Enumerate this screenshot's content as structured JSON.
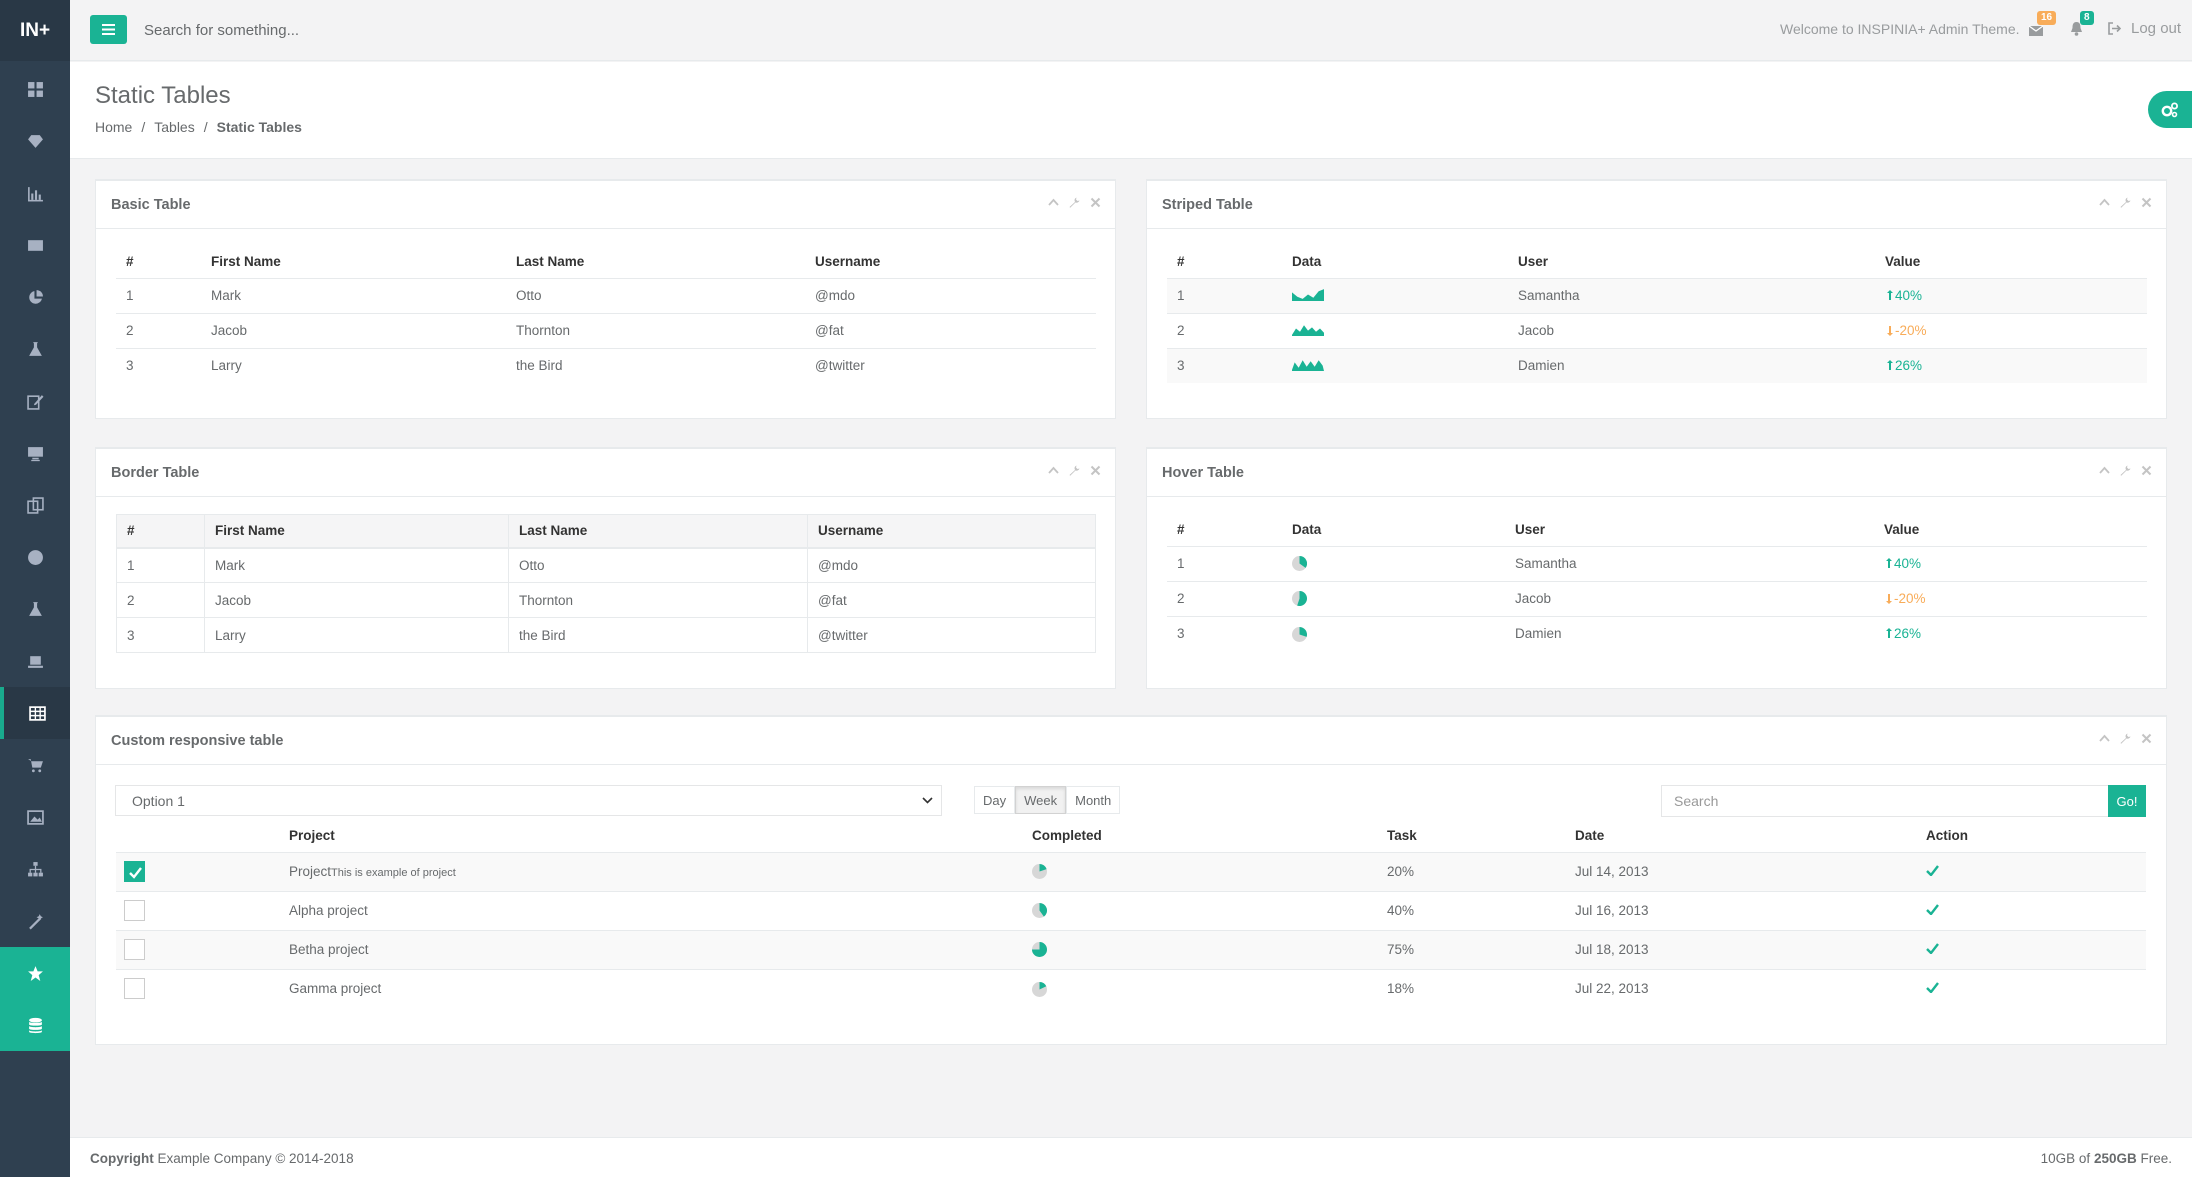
{
  "app": {
    "logo": "IN+"
  },
  "topbar": {
    "search_placeholder": "Search for something...",
    "welcome": "Welcome to INSPINIA+ Admin Theme.",
    "messages_count": "16",
    "alerts_count": "8",
    "logout": "Log out"
  },
  "header": {
    "title": "Static Tables",
    "breadcrumb": [
      "Home",
      "Tables",
      "Static Tables"
    ]
  },
  "sidebar_icons": [
    "dashboard-icon",
    "diamond-icon",
    "bar-chart-icon",
    "envelope-icon",
    "pie-chart-icon",
    "flask-icon",
    "edit-icon",
    "desktop-icon",
    "files-icon",
    "globe-icon",
    "flask-icon",
    "laptop-icon",
    "table-icon",
    "cart-icon",
    "picture-icon",
    "sitemap-icon",
    "magic-icon",
    "star-icon",
    "database-icon"
  ],
  "basic": {
    "title": "Basic Table",
    "headers": [
      "#",
      "First Name",
      "Last Name",
      "Username"
    ],
    "rows": [
      [
        "1",
        "Mark",
        "Otto",
        "@mdo"
      ],
      [
        "2",
        "Jacob",
        "Thornton",
        "@fat"
      ],
      [
        "3",
        "Larry",
        "the Bird",
        "@twitter"
      ]
    ]
  },
  "striped": {
    "title": "Striped Table",
    "headers": [
      "#",
      "Data",
      "User",
      "Value"
    ],
    "rows": [
      {
        "n": "1",
        "user": "Samantha",
        "value": "40%",
        "trend": "up"
      },
      {
        "n": "2",
        "user": "Jacob",
        "value": "-20%",
        "trend": "down"
      },
      {
        "n": "3",
        "user": "Damien",
        "value": "26%",
        "trend": "up"
      }
    ]
  },
  "border": {
    "title": "Border Table",
    "headers": [
      "#",
      "First Name",
      "Last Name",
      "Username"
    ],
    "rows": [
      [
        "1",
        "Mark",
        "Otto",
        "@mdo"
      ],
      [
        "2",
        "Jacob",
        "Thornton",
        "@fat"
      ],
      [
        "3",
        "Larry",
        "the Bird",
        "@twitter"
      ]
    ]
  },
  "hover": {
    "title": "Hover Table",
    "headers": [
      "#",
      "Data",
      "User",
      "Value"
    ],
    "rows": [
      {
        "n": "1",
        "user": "Samantha",
        "value": "40%",
        "trend": "up",
        "pie": 0.35
      },
      {
        "n": "2",
        "user": "Jacob",
        "value": "-20%",
        "trend": "down",
        "pie": 0.55
      },
      {
        "n": "3",
        "user": "Damien",
        "value": "26%",
        "trend": "up",
        "pie": 0.3
      }
    ]
  },
  "custom": {
    "title": "Custom responsive table",
    "select_value": "Option 1",
    "range_buttons": [
      "Day",
      "Week",
      "Month"
    ],
    "search_placeholder": "Search",
    "go": "Go!",
    "headers": [
      "Project",
      "Completed",
      "Task",
      "Date",
      "Action"
    ],
    "rows": [
      {
        "checked": true,
        "project": "Project",
        "note": "This is example of project",
        "completed": 0.2,
        "task": "20%",
        "date": "Jul 14, 2013"
      },
      {
        "checked": false,
        "project": "Alpha project",
        "note": "",
        "completed": 0.4,
        "task": "40%",
        "date": "Jul 16, 2013"
      },
      {
        "checked": false,
        "project": "Betha project",
        "note": "",
        "completed": 0.75,
        "task": "75%",
        "date": "Jul 18, 2013"
      },
      {
        "checked": false,
        "project": "Gamma project",
        "note": "",
        "completed": 0.18,
        "task": "18%",
        "date": "Jul 22, 2013"
      }
    ]
  },
  "footer": {
    "copyright": "Copyright",
    "company": "Example Company © 2014-2018",
    "storage_used": "10GB of",
    "storage_total": "250GB",
    "storage_free": "Free."
  },
  "colors": {
    "accent": "#1ab394",
    "warning": "#f8ac59",
    "sidebar": "#2f4050"
  }
}
